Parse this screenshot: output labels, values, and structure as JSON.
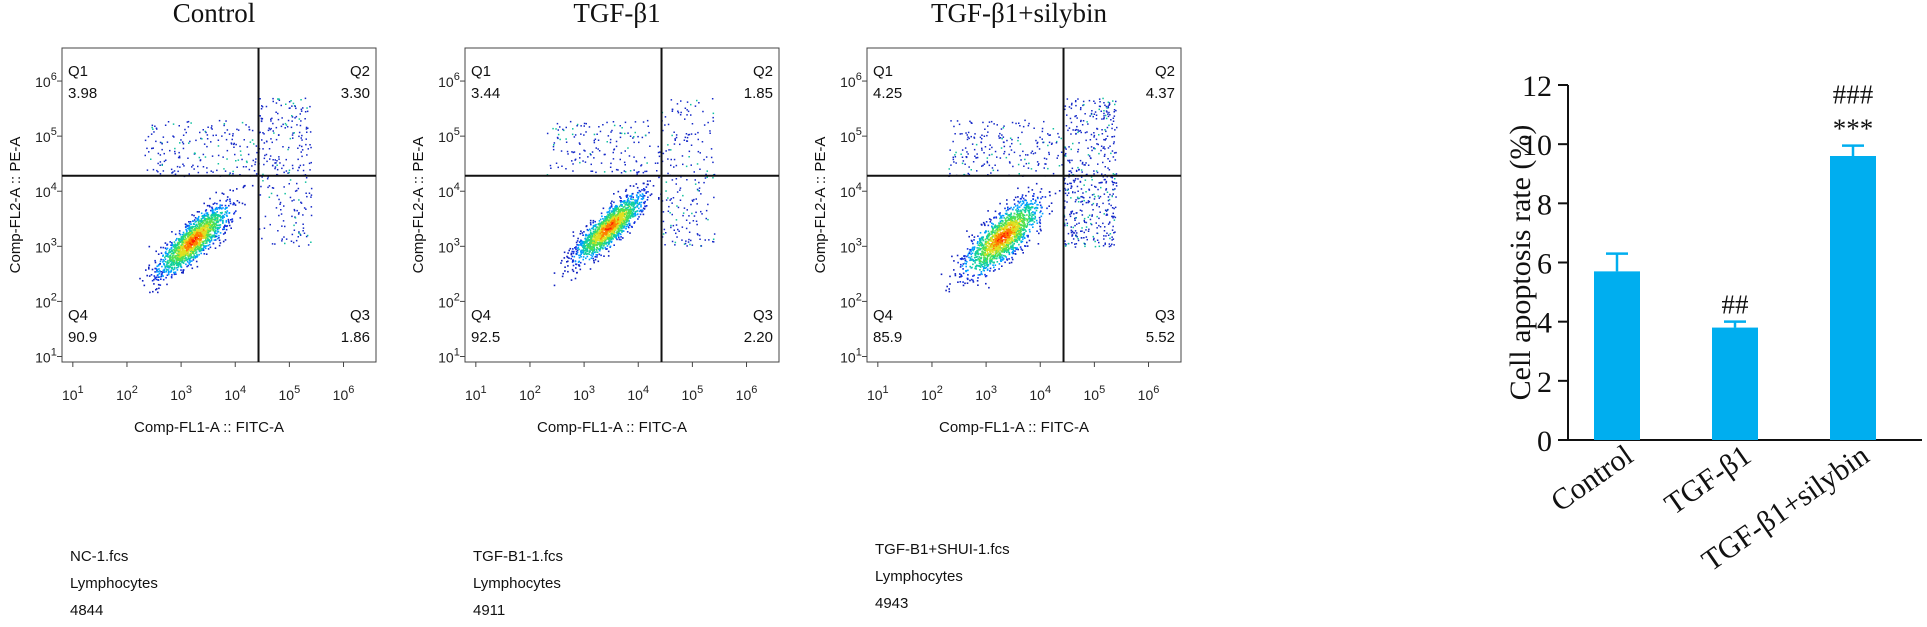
{
  "chart_data": [
    {
      "type": "scatter",
      "title": "Control",
      "xlabel": "Comp-FL1-A :: FITC-A",
      "ylabel": "Comp-FL2-A :: PE-A",
      "x_scale": "log",
      "y_scale": "log",
      "x_range_log10": [
        0.8,
        6.6
      ],
      "y_range_log10": [
        0.9,
        6.6
      ],
      "x_ticks": [
        "10^1",
        "10^2",
        "10^3",
        "10^4",
        "10^5",
        "10^6"
      ],
      "y_ticks": [
        "10^1",
        "10^2",
        "10^3",
        "10^4",
        "10^5",
        "10^6"
      ],
      "gate_log10": {
        "x": 4.43,
        "y": 4.28
      },
      "quadrants": [
        {
          "name": "Q1",
          "value": "3.98"
        },
        {
          "name": "Q2",
          "value": "3.30"
        },
        {
          "name": "Q3",
          "value": "1.86"
        },
        {
          "name": "Q4",
          "value": "90.9"
        }
      ],
      "footer": {
        "file": "NC-1.fcs",
        "population": "Lymphocytes",
        "events": "4844"
      }
    },
    {
      "type": "scatter",
      "title": "TGF-β1",
      "xlabel": "Comp-FL1-A :: FITC-A",
      "ylabel": "Comp-FL2-A :: PE-A",
      "x_scale": "log",
      "y_scale": "log",
      "x_range_log10": [
        0.8,
        6.6
      ],
      "y_range_log10": [
        0.9,
        6.6
      ],
      "x_ticks": [
        "10^1",
        "10^2",
        "10^3",
        "10^4",
        "10^5",
        "10^6"
      ],
      "y_ticks": [
        "10^1",
        "10^2",
        "10^3",
        "10^4",
        "10^5",
        "10^6"
      ],
      "gate_log10": {
        "x": 4.43,
        "y": 4.28
      },
      "quadrants": [
        {
          "name": "Q1",
          "value": "3.44"
        },
        {
          "name": "Q2",
          "value": "1.85"
        },
        {
          "name": "Q3",
          "value": "2.20"
        },
        {
          "name": "Q4",
          "value": "92.5"
        }
      ],
      "footer": {
        "file": "TGF-B1-1.fcs",
        "population": "Lymphocytes",
        "events": "4911"
      }
    },
    {
      "type": "scatter",
      "title": "TGF-β1+silybin",
      "xlabel": "Comp-FL1-A :: FITC-A",
      "ylabel": "Comp-FL2-A :: PE-A",
      "x_scale": "log",
      "y_scale": "log",
      "x_range_log10": [
        0.8,
        6.6
      ],
      "y_range_log10": [
        0.9,
        6.6
      ],
      "x_ticks": [
        "10^1",
        "10^2",
        "10^3",
        "10^4",
        "10^5",
        "10^6"
      ],
      "y_ticks": [
        "10^1",
        "10^2",
        "10^3",
        "10^4",
        "10^5",
        "10^6"
      ],
      "gate_log10": {
        "x": 4.43,
        "y": 4.28
      },
      "quadrants": [
        {
          "name": "Q1",
          "value": "4.25"
        },
        {
          "name": "Q2",
          "value": "4.37"
        },
        {
          "name": "Q3",
          "value": "5.52"
        },
        {
          "name": "Q4",
          "value": "85.9"
        }
      ],
      "footer": {
        "file": "TGF-B1+SHUI-1.fcs",
        "population": "Lymphocytes",
        "events": "4943"
      }
    },
    {
      "type": "bar",
      "categories": [
        "Control",
        "TGF-β1",
        "TGF-β1+silybin"
      ],
      "values": [
        5.7,
        3.8,
        9.6
      ],
      "errors": [
        0.6,
        0.2,
        0.35
      ],
      "annotations": [
        {
          "category": "TGF-β1",
          "lines": [
            "##"
          ]
        },
        {
          "category": "TGF-β1+silybin",
          "lines": [
            "###",
            "***"
          ]
        }
      ],
      "ylabel": "Cell apoptosis rate (%)",
      "ylim": [
        0,
        12
      ],
      "yticks": [
        0,
        2,
        4,
        6,
        8,
        10,
        12
      ],
      "bar_color": "#00aeef"
    }
  ]
}
